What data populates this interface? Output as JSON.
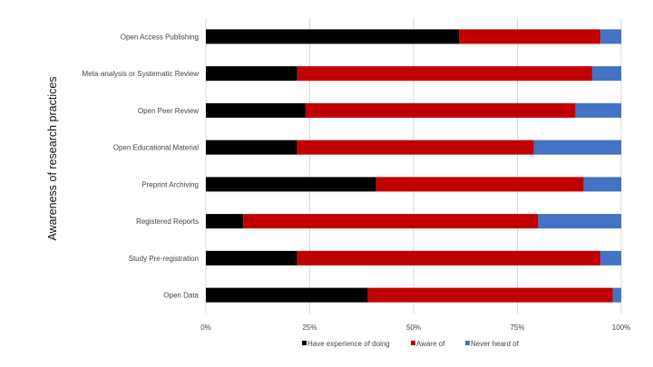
{
  "chart_data": {
    "type": "bar",
    "orientation": "horizontal",
    "stacked": true,
    "percent": true,
    "ylabel": "Awareness of research practices",
    "categories": [
      "Open Access Publishing",
      "Meta-analysis or Systematic Review",
      "Open Peer Review",
      "Open Educational Material",
      "Preprint Archiving",
      "Registered Reports",
      "Study Pre-registration",
      "Open Data"
    ],
    "series": [
      {
        "name": "Have experience of doing",
        "color": "#000000",
        "values": [
          61,
          22,
          24,
          22,
          41,
          9,
          22,
          39
        ]
      },
      {
        "name": "Aware of",
        "color": "#c00000",
        "values": [
          34,
          71,
          65,
          57,
          50,
          71,
          73,
          59
        ]
      },
      {
        "name": "Never heard of",
        "color": "#4472c4",
        "values": [
          5,
          7,
          11,
          21,
          9,
          20,
          5,
          2
        ]
      }
    ],
    "xticks": [
      "0%",
      "25%",
      "50%",
      "75%",
      "100%"
    ],
    "xlim": [
      0,
      100
    ],
    "grid": true,
    "legend_position": "bottom"
  }
}
